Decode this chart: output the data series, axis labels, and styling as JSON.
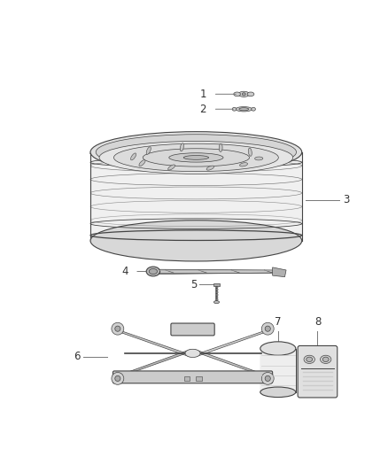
{
  "bg_color": "#ffffff",
  "label_color": "#333333",
  "line_color": "#777777",
  "part_stroke": "#444444",
  "part_light": "#e8e8e8",
  "part_mid": "#cccccc",
  "part_dark": "#999999",
  "label_fontsize": 8.5
}
